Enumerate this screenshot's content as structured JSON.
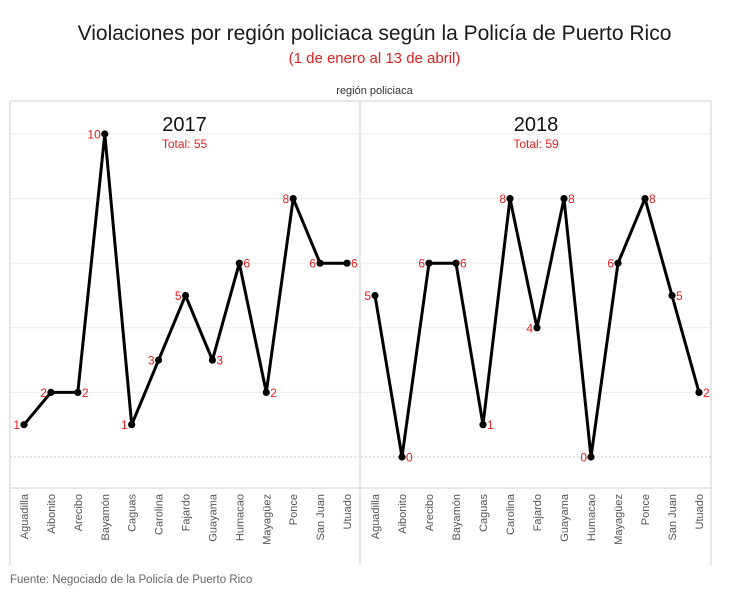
{
  "title": "Violaciones por región policiaca según la Policía de Puerto Rico",
  "subtitle": "(1 de enero al 13 de abril)",
  "header": "región policiaca",
  "source": "Fuente: Negociado de la Policía de Puerto Rico",
  "colors": {
    "line": "#000000",
    "labels": "#e02020",
    "grid": "#ececec"
  },
  "chart_data": [
    {
      "type": "line",
      "title": "2017",
      "subtitle": "Total: 55",
      "categories": [
        "Aguadilla",
        "Aibonito",
        "Arecibo",
        "Bayamón",
        "Caguas",
        "Carolina",
        "Fajardo",
        "Guayama",
        "Humacao",
        "Mayagüez",
        "Ponce",
        "San Juan",
        "Utuado"
      ],
      "values": [
        1,
        2,
        2,
        10,
        1,
        3,
        5,
        3,
        6,
        2,
        8,
        6,
        6
      ],
      "label_side": [
        "l",
        "l",
        "r",
        "l",
        "l",
        "l",
        "l",
        "r",
        "r",
        "r",
        "l",
        "l",
        "r"
      ],
      "ylim": [
        0,
        11
      ],
      "grid": true
    },
    {
      "type": "line",
      "title": "2018",
      "subtitle": "Total: 59",
      "categories": [
        "Aguadilla",
        "Aibonito",
        "Arecibo",
        "Bayamón",
        "Caguas",
        "Carolina",
        "Fajardo",
        "Guayama",
        "Humacao",
        "Mayagüez",
        "Ponce",
        "San Juan",
        "Utuado"
      ],
      "values": [
        5,
        0,
        6,
        6,
        1,
        8,
        4,
        8,
        0,
        6,
        8,
        5,
        2
      ],
      "label_side": [
        "l",
        "r",
        "l",
        "r",
        "r",
        "l",
        "l",
        "r",
        "l",
        "l",
        "r",
        "r",
        "r"
      ],
      "ylim": [
        0,
        11
      ],
      "grid": true
    }
  ]
}
